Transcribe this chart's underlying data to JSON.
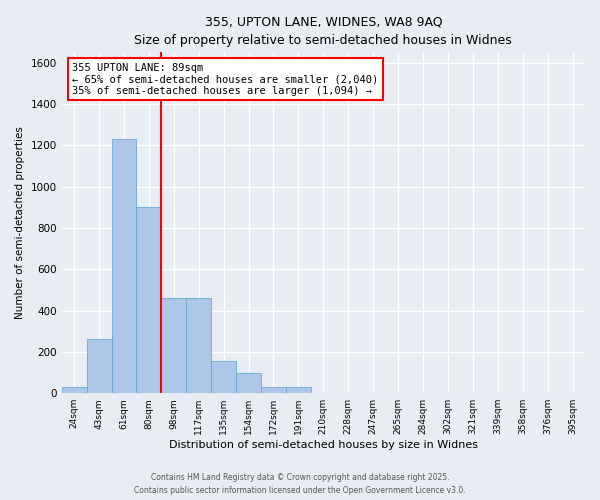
{
  "title1": "355, UPTON LANE, WIDNES, WA8 9AQ",
  "title2": "Size of property relative to semi-detached houses in Widnes",
  "xlabel": "Distribution of semi-detached houses by size in Widnes",
  "ylabel": "Number of semi-detached properties",
  "categories": [
    "24sqm",
    "43sqm",
    "61sqm",
    "80sqm",
    "98sqm",
    "117sqm",
    "135sqm",
    "154sqm",
    "172sqm",
    "191sqm",
    "210sqm",
    "228sqm",
    "247sqm",
    "265sqm",
    "284sqm",
    "302sqm",
    "321sqm",
    "339sqm",
    "358sqm",
    "376sqm",
    "395sqm"
  ],
  "values": [
    30,
    260,
    1230,
    900,
    460,
    460,
    155,
    100,
    30,
    30,
    0,
    0,
    0,
    0,
    0,
    0,
    0,
    0,
    0,
    0,
    0
  ],
  "bar_color": "#aec6e8",
  "bar_edge_color": "#6aaad4",
  "vline_x_idx": 3,
  "vline_color": "red",
  "annotation_title": "355 UPTON LANE: 89sqm",
  "annotation_line1": "← 65% of semi-detached houses are smaller (2,040)",
  "annotation_line2": "35% of semi-detached houses are larger (1,094) →",
  "ylim": [
    0,
    1650
  ],
  "yticks": [
    0,
    200,
    400,
    600,
    800,
    1000,
    1200,
    1400,
    1600
  ],
  "bg_color": "#e8edf4",
  "plot_bg_color": "#e8edf4",
  "footnote1": "Contains HM Land Registry data © Crown copyright and database right 2025.",
  "footnote2": "Contains public sector information licensed under the Open Government Licence v3.0."
}
